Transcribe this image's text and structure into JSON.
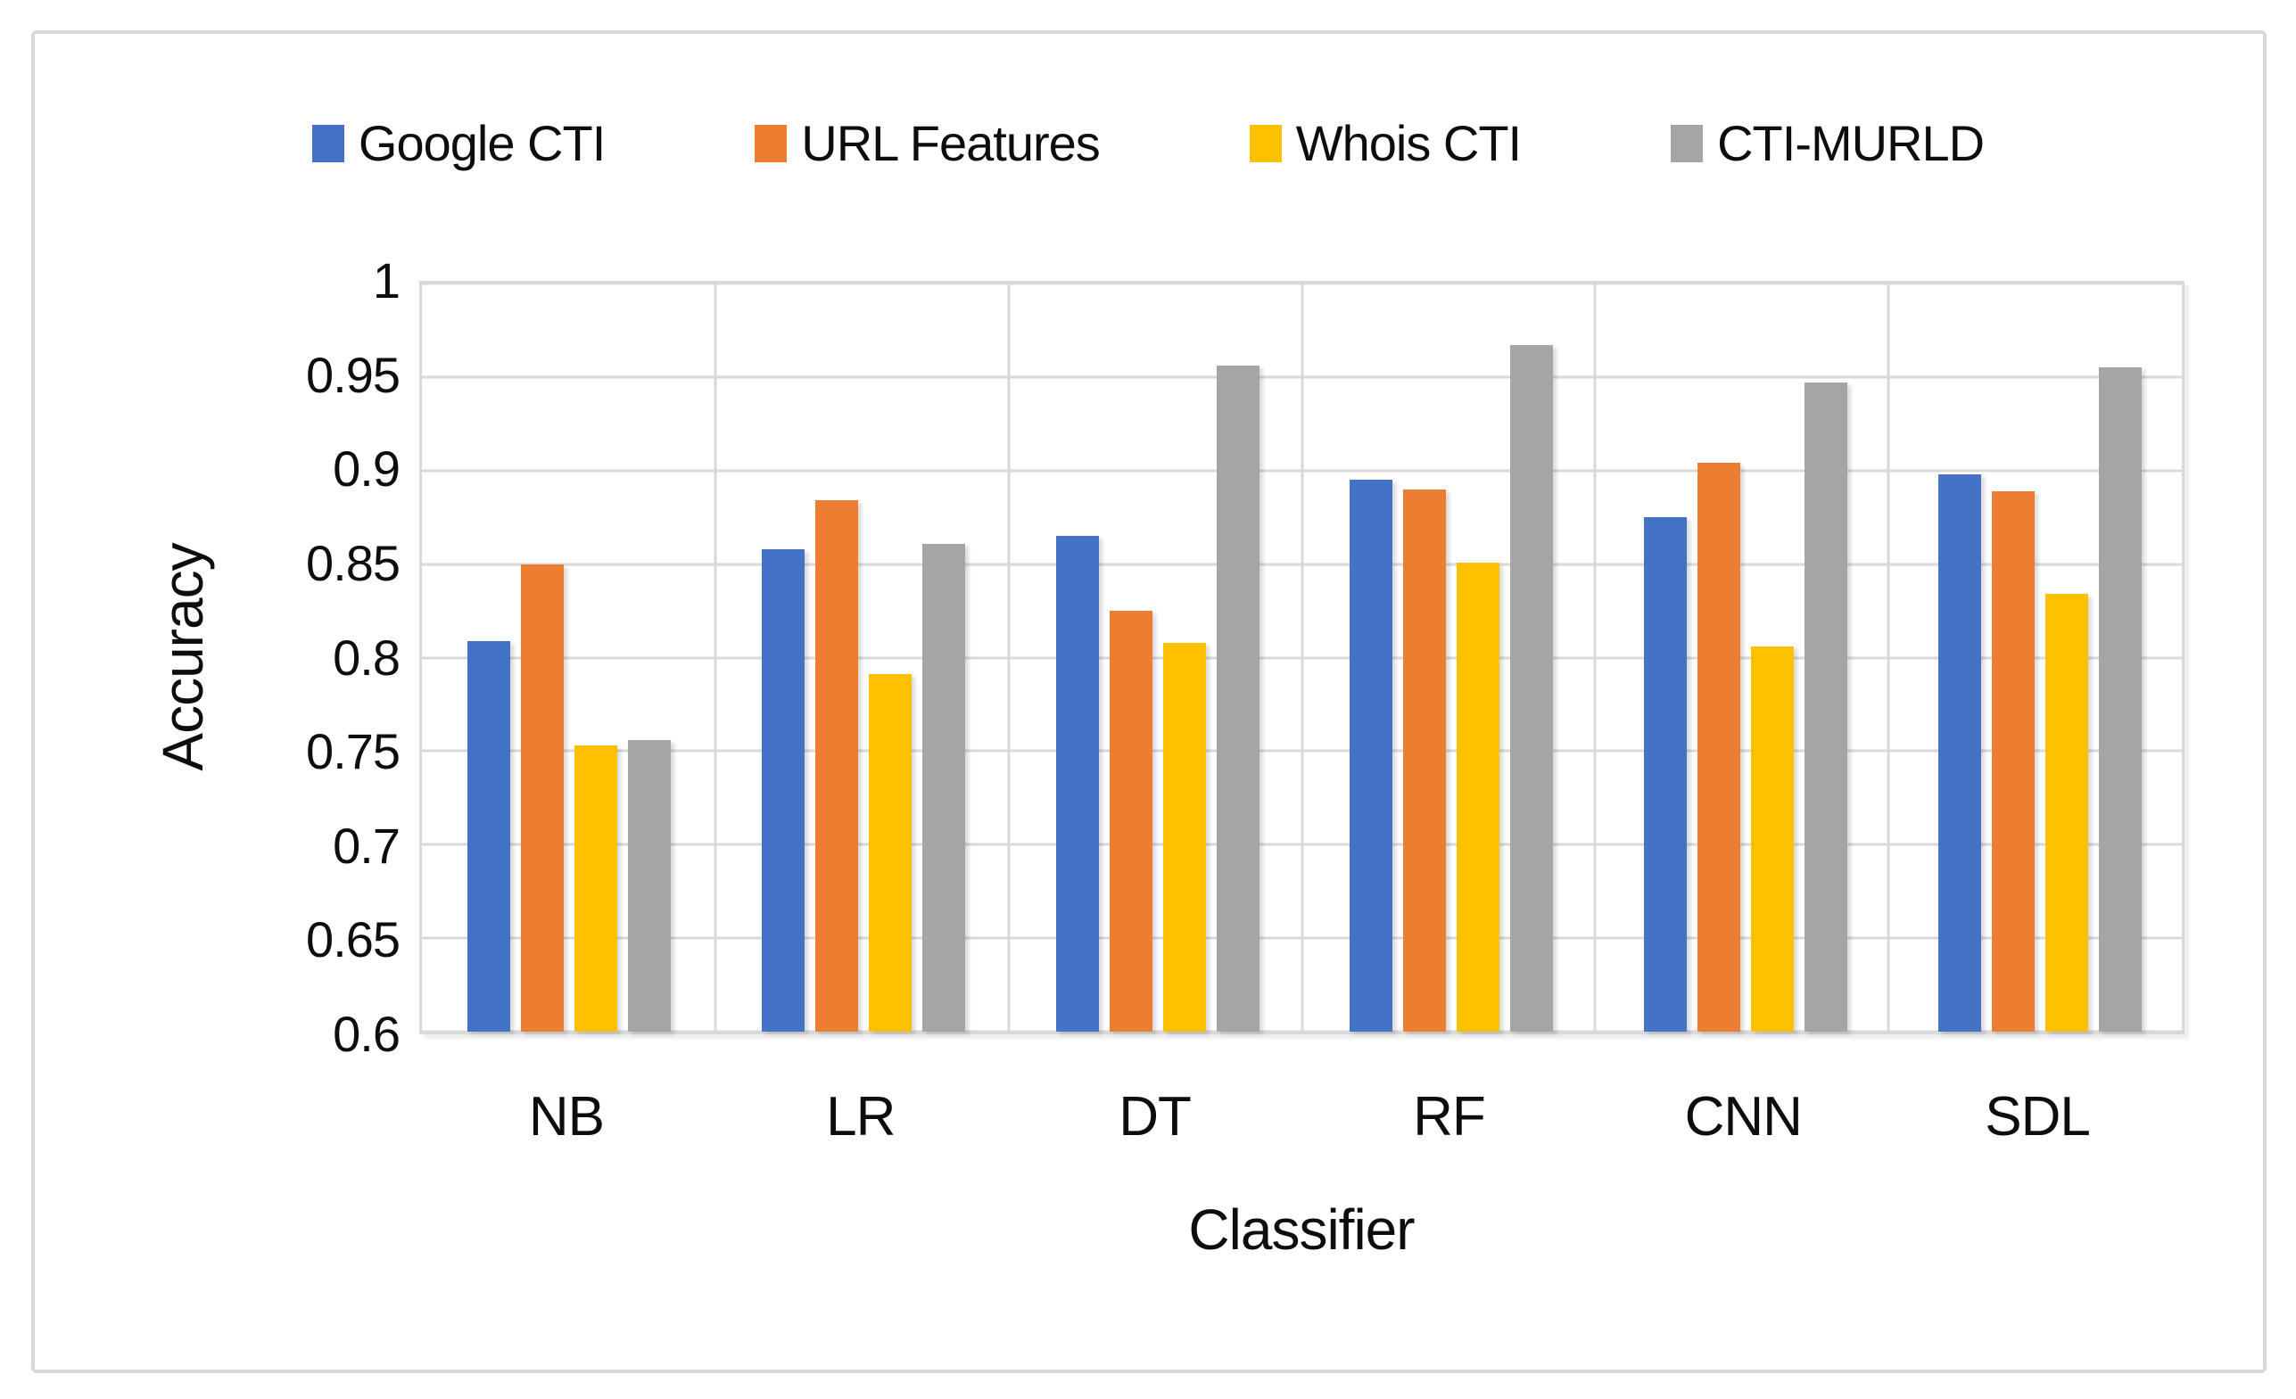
{
  "figure": {
    "y_axis_title": "Accuracy",
    "x_axis_title": "Classifier"
  },
  "chart_data": {
    "type": "bar",
    "title": "",
    "xlabel": "Classifier",
    "ylabel": "Accuracy",
    "ylim": [
      0.6,
      1.0
    ],
    "ytick_step": 0.05,
    "ytick_labels_top_to_bottom": [
      "1",
      "0.95",
      "0.9",
      "0.85",
      "0.8",
      "0.75",
      "0.7",
      "0.65",
      "0.6"
    ],
    "grid": true,
    "gridline_color": "#d9d9d9",
    "legend_position": "top",
    "categories": [
      "NB",
      "LR",
      "DT",
      "RF",
      "CNN",
      "SDL"
    ],
    "series": [
      {
        "name": "Google CTI",
        "color": "#4472C4",
        "values": [
          0.809,
          0.858,
          0.865,
          0.895,
          0.875,
          0.898
        ]
      },
      {
        "name": "URL Features",
        "color": "#ED7D31",
        "values": [
          0.85,
          0.884,
          0.825,
          0.89,
          0.904,
          0.889
        ]
      },
      {
        "name": "Whois CTI",
        "color": "#FFC000",
        "values": [
          0.753,
          0.791,
          0.808,
          0.851,
          0.806,
          0.834
        ]
      },
      {
        "name": "CTI-MURLD",
        "color": "#A5A5A5",
        "values": [
          0.756,
          0.861,
          0.956,
          0.967,
          0.947,
          0.955
        ]
      }
    ]
  }
}
